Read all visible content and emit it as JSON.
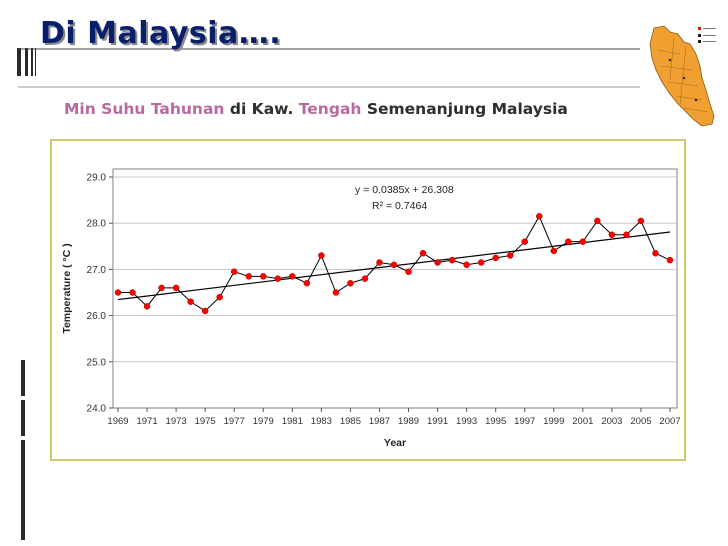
{
  "slide": {
    "title": "Di Malaysia….",
    "subtitle_parts": [
      "Min Suhu Tahunan",
      "di Kaw.",
      "Tengah",
      "Semenanjung Malaysia"
    ]
  },
  "colors": {
    "title": "#0a1f6b",
    "subtitle_highlight": "#b8699f",
    "chart_frame": "#cccc66",
    "series_line": "#000000",
    "series_marker": "#ff0000",
    "trend_line": "#000000"
  },
  "map": {
    "icon": "peninsular-malaysia-map-icon"
  },
  "chart_data": {
    "type": "line",
    "title": "",
    "xlabel": "Year",
    "ylabel": "Temperature ( °C )",
    "ylim": [
      24.0,
      29.0
    ],
    "yticks": [
      "24.0",
      "25.0",
      "26.0",
      "27.0",
      "28.0",
      "29.0"
    ],
    "xticks": [
      "1969",
      "1971",
      "1973",
      "1975",
      "1977",
      "1979",
      "1981",
      "1983",
      "1985",
      "1987",
      "1989",
      "1991",
      "1993",
      "1995",
      "1997",
      "1999",
      "2001",
      "2003",
      "2005",
      "2007"
    ],
    "annotation": [
      "y = 0.0385x + 26.308",
      "R² = 0.7464"
    ],
    "grid": "horizontal",
    "series": [
      {
        "x": [
          1969,
          1970,
          1971,
          1972,
          1973,
          1974,
          1975,
          1976,
          1977,
          1978,
          1979,
          1980,
          1981,
          1982,
          1983,
          1984,
          1985,
          1986,
          1987,
          1988,
          1989,
          1990,
          1991,
          1992,
          1993,
          1994,
          1995,
          1996,
          1997,
          1998,
          1999,
          2000,
          2001,
          2002,
          2003,
          2004,
          2005,
          2006,
          2007
        ],
        "y": [
          26.5,
          26.5,
          26.2,
          26.6,
          26.6,
          26.3,
          26.1,
          26.4,
          26.95,
          26.85,
          26.85,
          26.8,
          26.85,
          26.7,
          27.3,
          26.5,
          26.7,
          26.8,
          27.15,
          27.1,
          26.95,
          27.35,
          27.15,
          27.2,
          27.1,
          27.15,
          27.25,
          27.3,
          27.6,
          28.15,
          27.4,
          27.6,
          27.6,
          28.05,
          27.75,
          27.75,
          28.05,
          27.35,
          27.2
        ]
      }
    ],
    "trendline": {
      "slope": 0.0385,
      "intercept": 26.308,
      "x_start": 1969,
      "x_end": 2007
    }
  }
}
